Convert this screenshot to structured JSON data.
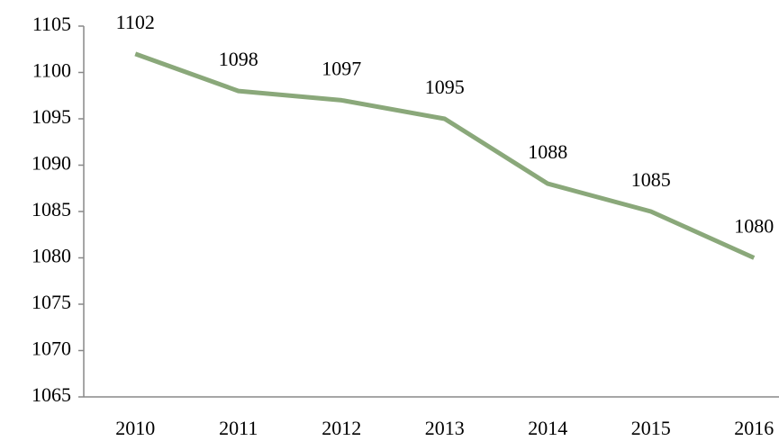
{
  "chart_data": {
    "type": "line",
    "categories": [
      "2010",
      "2011",
      "2012",
      "2013",
      "2014",
      "2015",
      "2016"
    ],
    "values": [
      1102,
      1098,
      1097,
      1095,
      1088,
      1085,
      1080
    ],
    "color": "#8aa87a",
    "ylim": [
      1065,
      1105
    ],
    "yticks": [
      1065,
      1070,
      1075,
      1080,
      1085,
      1090,
      1095,
      1100,
      1105
    ],
    "grid": false,
    "data_labels": true
  }
}
